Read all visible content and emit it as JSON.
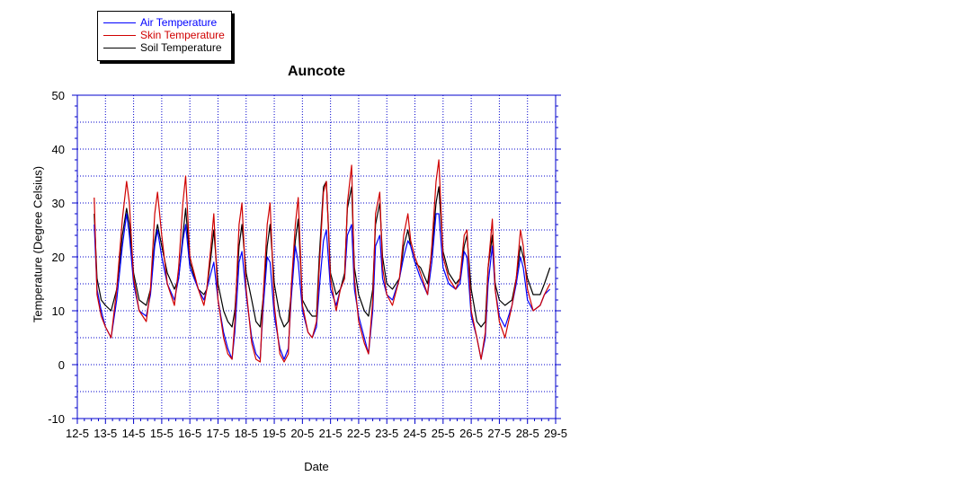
{
  "colors": {
    "plot_frame": "#0000cc",
    "grid": "#0000cc",
    "air": "#0000ff",
    "skin": "#d00000",
    "soil": "#000000"
  },
  "chart_data": {
    "type": "line",
    "title": "Auncote",
    "xlabel": "Date",
    "ylabel": "Temperature (Degree Celsius)",
    "ylim": [
      -10,
      50
    ],
    "xlim": [
      12,
      29
    ],
    "grid": true,
    "legend_position": "top-left, above plot",
    "x_tick_labels": [
      "12-5",
      "13-5",
      "14-5",
      "15-5",
      "16-5",
      "17-5",
      "18-5",
      "19-5",
      "20-5",
      "21-5",
      "22-5",
      "23-5",
      "24-5",
      "25-5",
      "26-5",
      "27-5",
      "28-5",
      "29-5"
    ],
    "y_tick_labels": [
      "50",
      "40",
      "30",
      "20",
      "10",
      "0",
      "-10"
    ],
    "series": [
      {
        "name": "Air Temperature",
        "color": "#0000ff",
        "x": [
          12.6,
          12.7,
          12.85,
          13.0,
          13.2,
          13.4,
          13.6,
          13.75,
          13.85,
          14.0,
          14.2,
          14.45,
          14.6,
          14.75,
          14.85,
          15.0,
          15.2,
          15.45,
          15.6,
          15.75,
          15.85,
          16.0,
          16.3,
          16.5,
          16.6,
          16.75,
          16.85,
          17.0,
          17.2,
          17.35,
          17.5,
          17.6,
          17.75,
          17.85,
          18.0,
          18.2,
          18.35,
          18.5,
          18.6,
          18.75,
          18.85,
          19.0,
          19.2,
          19.35,
          19.5,
          19.6,
          19.75,
          19.85,
          20.0,
          20.2,
          20.35,
          20.5,
          20.6,
          20.75,
          20.85,
          21.0,
          21.2,
          21.35,
          21.5,
          21.6,
          21.75,
          21.85,
          22.0,
          22.2,
          22.35,
          22.5,
          22.6,
          22.75,
          22.85,
          23.0,
          23.2,
          23.45,
          23.6,
          23.75,
          23.85,
          24.0,
          24.2,
          24.45,
          24.6,
          24.75,
          24.85,
          25.0,
          25.2,
          25.45,
          25.6,
          25.75,
          25.85,
          26.0,
          26.2,
          26.35,
          26.5,
          26.6,
          26.75,
          26.85,
          27.0,
          27.2,
          27.45,
          27.6,
          27.75,
          27.85,
          28.0,
          28.2,
          28.45,
          28.6,
          28.8
        ],
        "y": [
          26,
          14,
          10,
          7,
          5,
          12,
          22,
          28,
          24,
          15,
          10,
          9,
          13,
          22,
          25,
          20,
          15,
          12,
          16,
          23,
          26,
          18,
          14,
          12,
          14,
          17,
          19,
          12,
          6,
          3,
          1,
          6,
          19,
          21,
          13,
          5,
          2,
          1,
          10,
          20,
          19,
          9,
          3,
          1,
          3,
          12,
          22,
          19,
          10,
          6,
          5,
          7,
          14,
          23,
          25,
          14,
          11,
          14,
          16,
          24,
          26,
          14,
          9,
          5,
          2,
          10,
          22,
          24,
          16,
          13,
          12,
          16,
          20,
          23,
          22,
          19,
          16,
          13,
          19,
          28,
          28,
          18,
          15,
          14,
          15,
          21,
          20,
          9,
          5,
          1,
          5,
          15,
          22,
          14,
          9,
          7,
          11,
          15,
          20,
          18,
          12,
          10,
          11,
          13,
          14
        ]
      },
      {
        "name": "Skin Temperature",
        "color": "#d00000",
        "x": [
          12.6,
          12.7,
          12.85,
          13.0,
          13.2,
          13.4,
          13.6,
          13.75,
          13.85,
          14.0,
          14.2,
          14.45,
          14.6,
          14.75,
          14.85,
          15.0,
          15.2,
          15.45,
          15.6,
          15.75,
          15.85,
          16.0,
          16.3,
          16.5,
          16.6,
          16.75,
          16.85,
          17.0,
          17.2,
          17.35,
          17.5,
          17.6,
          17.75,
          17.85,
          18.0,
          18.2,
          18.35,
          18.5,
          18.6,
          18.75,
          18.85,
          19.0,
          19.2,
          19.35,
          19.5,
          19.6,
          19.75,
          19.85,
          20.0,
          20.2,
          20.35,
          20.5,
          20.6,
          20.75,
          20.85,
          21.0,
          21.2,
          21.35,
          21.5,
          21.6,
          21.75,
          21.85,
          22.0,
          22.2,
          22.35,
          22.5,
          22.6,
          22.75,
          22.85,
          23.0,
          23.2,
          23.45,
          23.6,
          23.75,
          23.85,
          24.0,
          24.2,
          24.45,
          24.6,
          24.75,
          24.85,
          25.0,
          25.2,
          25.45,
          25.6,
          25.75,
          25.85,
          26.0,
          26.2,
          26.35,
          26.5,
          26.6,
          26.75,
          26.85,
          27.0,
          27.2,
          27.45,
          27.6,
          27.75,
          27.85,
          28.0,
          28.2,
          28.45,
          28.6,
          28.8
        ],
        "y": [
          31,
          13,
          9,
          7,
          5,
          14,
          27,
          34,
          30,
          16,
          10,
          8,
          14,
          28,
          32,
          24,
          15,
          11,
          18,
          30,
          35,
          20,
          14,
          11,
          14,
          22,
          28,
          12,
          5,
          2,
          1,
          8,
          26,
          30,
          14,
          4,
          1,
          0.5,
          12,
          26,
          30,
          11,
          2,
          0.5,
          2,
          14,
          26,
          31,
          11,
          6,
          5,
          8,
          18,
          32,
          34,
          16,
          10,
          14,
          16,
          30,
          37,
          16,
          8,
          4,
          2,
          12,
          28,
          32,
          18,
          13,
          11,
          16,
          24,
          28,
          23,
          20,
          17,
          13,
          22,
          34,
          38,
          20,
          16,
          14,
          16,
          24,
          25,
          10,
          5,
          1,
          6,
          18,
          27,
          14,
          8,
          5,
          11,
          16,
          25,
          22,
          14,
          10,
          11,
          13,
          15
        ]
      },
      {
        "name": "Soil Temperature",
        "color": "#000000",
        "x": [
          12.6,
          12.7,
          12.85,
          13.0,
          13.2,
          13.4,
          13.6,
          13.75,
          13.85,
          14.0,
          14.2,
          14.45,
          14.6,
          14.75,
          14.85,
          15.0,
          15.2,
          15.45,
          15.6,
          15.75,
          15.85,
          16.0,
          16.3,
          16.5,
          16.6,
          16.75,
          16.85,
          17.0,
          17.2,
          17.35,
          17.5,
          17.6,
          17.75,
          17.85,
          18.0,
          18.2,
          18.35,
          18.5,
          18.6,
          18.75,
          18.85,
          19.0,
          19.2,
          19.35,
          19.5,
          19.6,
          19.75,
          19.85,
          20.0,
          20.2,
          20.35,
          20.5,
          20.6,
          20.75,
          20.85,
          21.0,
          21.2,
          21.35,
          21.5,
          21.6,
          21.75,
          21.85,
          22.0,
          22.2,
          22.35,
          22.5,
          22.6,
          22.75,
          22.85,
          23.0,
          23.2,
          23.45,
          23.6,
          23.75,
          23.85,
          24.0,
          24.2,
          24.45,
          24.6,
          24.75,
          24.85,
          25.0,
          25.2,
          25.45,
          25.6,
          25.75,
          25.85,
          26.0,
          26.2,
          26.35,
          26.5,
          26.6,
          26.75,
          26.85,
          27.0,
          27.2,
          27.45,
          27.6,
          27.75,
          27.85,
          28.0,
          28.2,
          28.45,
          28.6,
          28.8
        ],
        "y": [
          28,
          16,
          12,
          11,
          10,
          14,
          24,
          29,
          26,
          17,
          12,
          11,
          14,
          23,
          26,
          22,
          17,
          14,
          16,
          24,
          29,
          19,
          14,
          13,
          14,
          20,
          25,
          15,
          10,
          8,
          7,
          10,
          22,
          26,
          17,
          12,
          8,
          7,
          12,
          22,
          26,
          15,
          9,
          7,
          8,
          13,
          23,
          27,
          12,
          10,
          9,
          9,
          20,
          33,
          34,
          17,
          13,
          14,
          17,
          29,
          33,
          18,
          13,
          10,
          9,
          14,
          26,
          30,
          20,
          15,
          14,
          16,
          22,
          25,
          22,
          19,
          18,
          15,
          21,
          30,
          33,
          21,
          17,
          15,
          16,
          22,
          24,
          14,
          8,
          7,
          8,
          18,
          24,
          15,
          12,
          11,
          12,
          16,
          22,
          20,
          16,
          13,
          13,
          15,
          18
        ]
      }
    ]
  }
}
